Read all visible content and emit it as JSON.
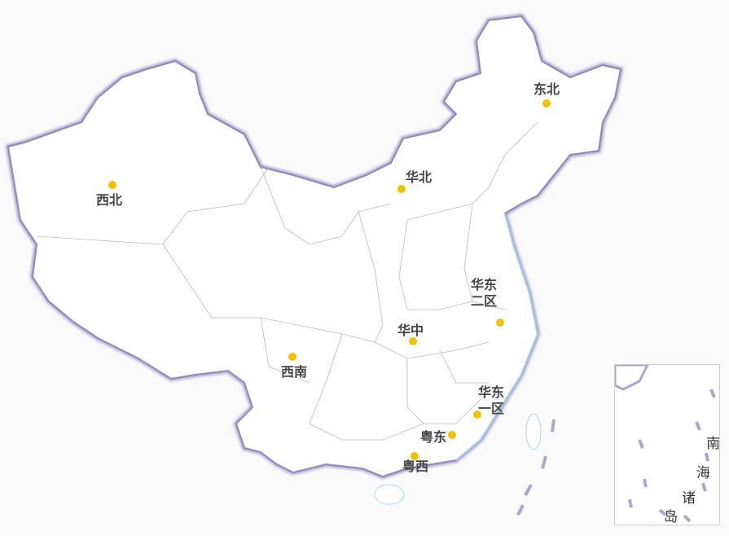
{
  "map": {
    "regions": [
      {
        "label": "东北",
        "labelPos": [
          655,
          100
        ],
        "dot": [
          671,
          127
        ]
      },
      {
        "label": "西北",
        "labelPos": [
          118,
          236
        ],
        "dot": [
          138,
          227
        ]
      },
      {
        "label": "华北",
        "labelPos": [
          498,
          208
        ],
        "dot": [
          493,
          232
        ]
      },
      {
        "label": "华东\n二区",
        "labelPos": [
          578,
          340
        ],
        "dot": [
          614,
          396
        ]
      },
      {
        "label": "华中",
        "labelPos": [
          488,
          396
        ],
        "dot": [
          507,
          419
        ]
      },
      {
        "label": "西南",
        "labelPos": [
          345,
          447
        ],
        "dot": [
          359,
          438
        ]
      },
      {
        "label": "华东\n一区",
        "labelPos": [
          587,
          472
        ],
        "dot": [
          586,
          509
        ]
      },
      {
        "label": "粤东",
        "labelPos": [
          516,
          527
        ],
        "dot": [
          555,
          534
        ]
      },
      {
        "label": "粤西",
        "labelPos": [
          494,
          563
        ],
        "dot": [
          509,
          560
        ]
      }
    ],
    "inset_label": [
      "南",
      "海",
      "诸",
      "岛"
    ],
    "colors": {
      "dot": "#f2c200",
      "border": "#a9a6d0",
      "land": "#ffffff",
      "internal": "#bbbbbb",
      "water": "#9fd8f0"
    }
  }
}
